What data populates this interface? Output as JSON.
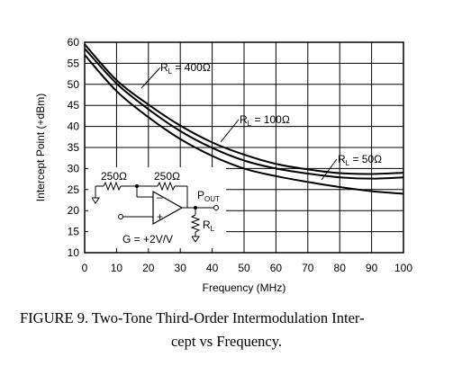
{
  "chart_data": {
    "type": "line",
    "xlabel": "Frequency (MHz)",
    "ylabel": "Intercept Point (+dBm)",
    "xlim": [
      0,
      100
    ],
    "ylim": [
      10,
      60
    ],
    "x_ticks": [
      0,
      10,
      20,
      30,
      40,
      50,
      60,
      70,
      80,
      90,
      100
    ],
    "y_ticks": [
      10,
      15,
      20,
      25,
      30,
      35,
      40,
      45,
      50,
      55,
      60
    ],
    "grid": true,
    "series": [
      {
        "name": "RL = 400Ω",
        "x": [
          0,
          10,
          20,
          30,
          40,
          50,
          60,
          70,
          80,
          90,
          100
        ],
        "y": [
          59.5,
          51.0,
          45.2,
          40.2,
          36.2,
          33.3,
          31.1,
          29.8,
          28.9,
          28.7,
          29.0
        ]
      },
      {
        "name": "RL = 100Ω",
        "x": [
          0,
          10,
          20,
          30,
          40,
          50,
          60,
          70,
          80,
          90,
          100
        ],
        "y": [
          58.5,
          50.2,
          44.1,
          38.9,
          34.9,
          31.9,
          30.0,
          28.8,
          27.9,
          27.6,
          27.9
        ]
      },
      {
        "name": "RL = 50Ω",
        "x": [
          0,
          10,
          20,
          30,
          40,
          50,
          60,
          70,
          80,
          90,
          100
        ],
        "y": [
          57.0,
          48.4,
          42.2,
          37.0,
          33.0,
          30.0,
          28.2,
          26.8,
          25.6,
          24.6,
          24.0
        ]
      }
    ],
    "annotations": [
      {
        "sub": "L",
        "rest": " = 400Ω"
      },
      {
        "sub": "L",
        "rest": " = 100Ω"
      },
      {
        "sub": "L",
        "rest": " = 50Ω"
      }
    ],
    "inset": {
      "r1_label": "250Ω",
      "r2_label": "250Ω",
      "minus": "–",
      "plus": "+",
      "pout_main": "P",
      "pout_sub": "OUT",
      "rl_main": "R",
      "rl_sub": "L",
      "gain_label": "G = +2V/V"
    }
  },
  "caption": {
    "line1": "FIGURE 9. Two-Tone Third-Order Intermodulation Inter-",
    "line2": "cept vs Frequency."
  }
}
